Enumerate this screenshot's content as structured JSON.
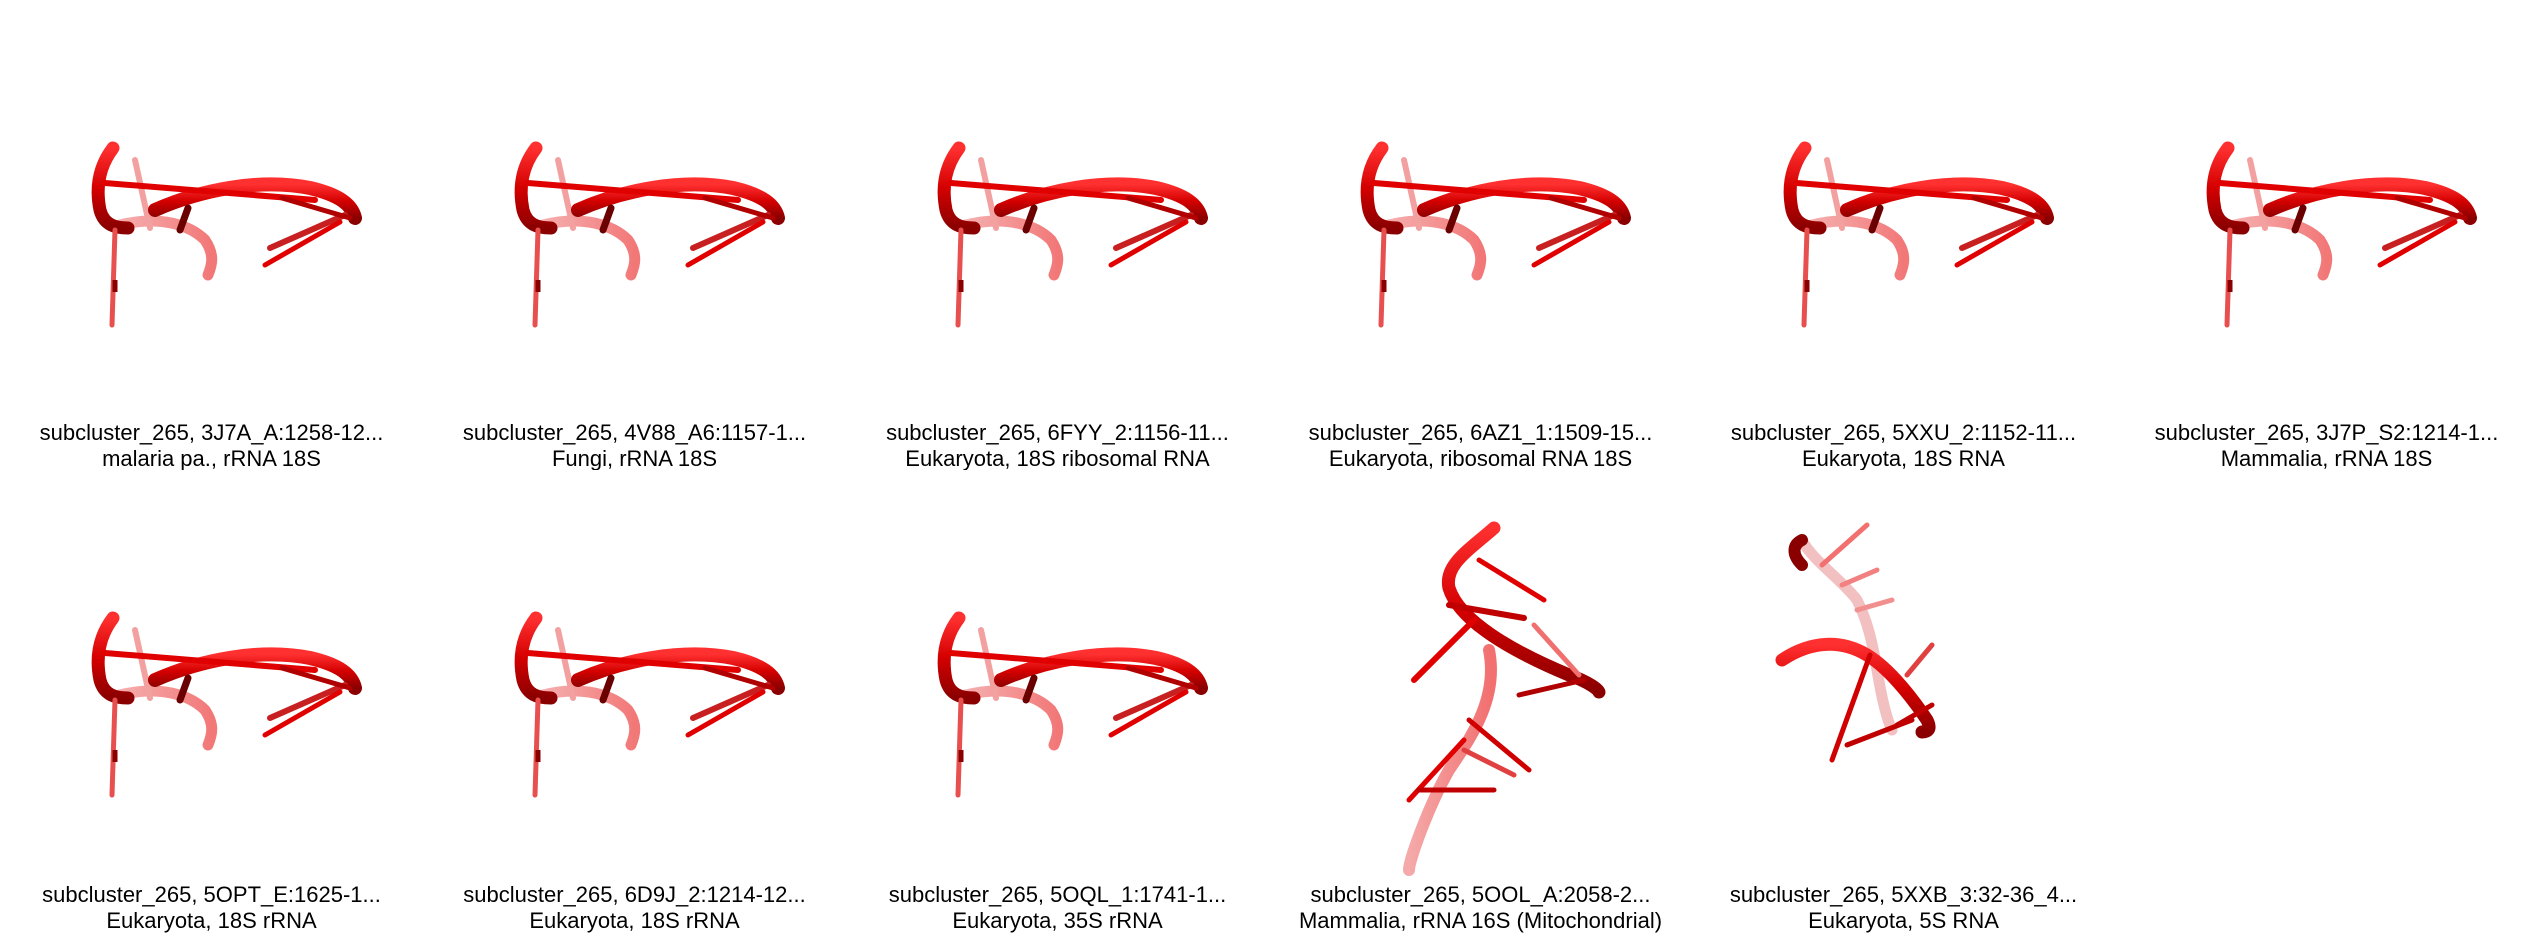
{
  "gallery": {
    "accent_color": "#e00000",
    "dark_color": "#7a0000",
    "light_color": "#f08080",
    "items": [
      {
        "id_label": "subcluster_265, 3J7A_A:1258-12...",
        "desc_label": "malaria pa., rRNA 18S",
        "icon": "rna-structure-icon"
      },
      {
        "id_label": "subcluster_265, 4V88_A6:1157-1...",
        "desc_label": "Fungi, rRNA 18S",
        "icon": "rna-structure-icon"
      },
      {
        "id_label": "subcluster_265, 6FYY_2:1156-11...",
        "desc_label": "Eukaryota, 18S ribosomal RNA",
        "icon": "rna-structure-icon"
      },
      {
        "id_label": "subcluster_265, 6AZ1_1:1509-15...",
        "desc_label": "Eukaryota, ribosomal RNA 18S",
        "icon": "rna-structure-icon"
      },
      {
        "id_label": "subcluster_265, 5XXU_2:1152-11...",
        "desc_label": "Eukaryota, 18S RNA",
        "icon": "rna-structure-icon"
      },
      {
        "id_label": "subcluster_265, 3J7P_S2:1214-1...",
        "desc_label": "Mammalia, rRNA 18S",
        "icon": "rna-structure-icon"
      },
      {
        "id_label": "subcluster_265, 5OPT_E:1625-1...",
        "desc_label": "Eukaryota, 18S rRNA",
        "icon": "rna-structure-icon"
      },
      {
        "id_label": "subcluster_265, 6D9J_2:1214-12...",
        "desc_label": "Eukaryota, 18S rRNA",
        "icon": "rna-structure-icon"
      },
      {
        "id_label": "subcluster_265, 5OQL_1:1741-1...",
        "desc_label": "Eukaryota, 35S rRNA",
        "icon": "rna-structure-icon"
      },
      {
        "id_label": "subcluster_265, 5OOL_A:2058-2...",
        "desc_label": "Mammalia, rRNA 16S (Mitochondrial)",
        "icon": "rna-structure-icon-elongated"
      },
      {
        "id_label": "subcluster_265, 5XXB_3:32-36_4...",
        "desc_label": "Eukaryota, 5S RNA",
        "icon": "rna-structure-icon-hairpin"
      }
    ]
  }
}
